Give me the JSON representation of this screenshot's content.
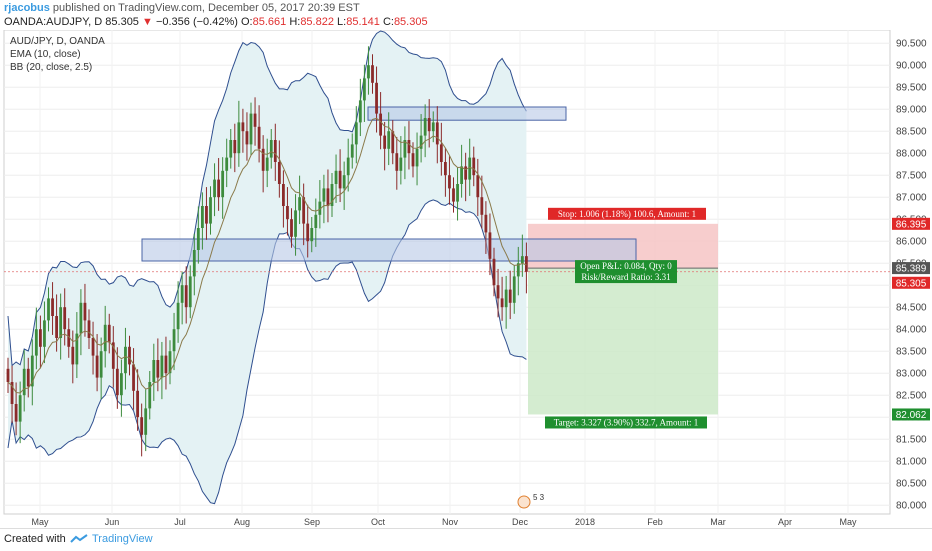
{
  "header": {
    "author": "rjacobus",
    "published_text": "published on TradingView.com, December 05, 2017 20:39 EST",
    "symbol": "OANDA:AUDJPY, D",
    "last": "85.305",
    "change_arrow": "▼",
    "change": "−0.356 (−0.42%)",
    "o_label": "O:",
    "o_val": "85.661",
    "h_label": "H:",
    "h_val": "85.822",
    "l_label": "L:",
    "l_val": "85.141",
    "c_label": "C:",
    "c_val": "85.305"
  },
  "legend": {
    "title": "AUD/JPY, D, OANDA",
    "ema": "EMA (10, close)",
    "bb": "BB (20, close, 2.5)"
  },
  "footer": {
    "created": "Created with",
    "brand": "TradingView"
  },
  "colors": {
    "up": "#3d8b3d",
    "down": "#8b2a2a",
    "band": "#2f4f8f",
    "band_fill": "#e4f2f4",
    "ema": "#8a7a4a",
    "rect_fill": "#b8c8e6",
    "rect_stroke": "#4a64a6",
    "stop_zone": "#f6c4c4",
    "target_zone": "#cde9c8"
  },
  "chart_data": {
    "type": "candlestick",
    "title": "AUD/JPY, D, OANDA",
    "ylim": [
      79.8,
      90.8
    ],
    "y_ticks": [
      "80.000",
      "80.500",
      "81.000",
      "81.500",
      "82.000",
      "82.500",
      "83.000",
      "83.500",
      "84.000",
      "84.500",
      "85.000",
      "85.500",
      "86.000",
      "86.500",
      "87.000",
      "87.500",
      "88.000",
      "88.500",
      "89.000",
      "89.500",
      "90.000",
      "90.500"
    ],
    "x_ticks": [
      "May",
      "Jun",
      "Jul",
      "Aug",
      "Sep",
      "Oct",
      "Nov",
      "Dec",
      "2018",
      "Feb",
      "Mar",
      "Apr",
      "May"
    ],
    "closes": [
      82.8,
      82.3,
      81.9,
      82.5,
      83.1,
      82.7,
      83.4,
      84.0,
      83.6,
      84.2,
      84.7,
      84.3,
      83.8,
      84.5,
      84.0,
      83.6,
      83.2,
      83.9,
      84.6,
      84.2,
      83.8,
      83.4,
      82.9,
      83.5,
      84.1,
      83.7,
      83.1,
      82.5,
      83.0,
      83.6,
      83.2,
      82.6,
      82.0,
      81.6,
      82.2,
      82.8,
      83.3,
      82.9,
      83.4,
      83.0,
      83.5,
      84.0,
      84.6,
      85.0,
      84.5,
      85.2,
      85.8,
      86.3,
      86.8,
      86.4,
      87.0,
      87.4,
      87.0,
      87.6,
      87.9,
      88.3,
      88.0,
      88.7,
      88.5,
      88.2,
      88.9,
      88.6,
      88.1,
      87.6,
      87.9,
      88.3,
      87.8,
      87.3,
      86.8,
      86.5,
      86.1,
      86.7,
      87.0,
      86.4,
      86.0,
      86.3,
      86.6,
      86.9,
      87.2,
      86.8,
      87.3,
      87.6,
      87.2,
      87.5,
      87.9,
      88.2,
      88.7,
      89.2,
      89.7,
      90.0,
      89.6,
      88.9,
      88.4,
      88.1,
      88.5,
      88.0,
      87.6,
      87.9,
      88.3,
      88.0,
      87.7,
      88.1,
      88.4,
      88.8,
      88.5,
      88.7,
      88.2,
      87.8,
      87.5,
      87.2,
      86.9,
      87.3,
      87.7,
      87.4,
      87.9,
      87.5,
      87.0,
      86.6,
      86.2,
      85.6,
      85.0,
      84.7,
      84.5,
      84.9,
      84.6,
      85.2,
      85.5,
      85.66,
      85.305
    ],
    "open_pnl_label": "Open P&L: 0.084, Qty: 0",
    "rr_label": "Risk/Reward Ratio: 3.31",
    "stop_label": "Stop: 1.006 (1.18%) 100.6, Amount: 1",
    "target_label": "Target: 3.327 (3.90%) 332.7, Amount: 1",
    "stop_price": "86.395",
    "target_price": "82.062",
    "last_price": "85.305",
    "entry_price": "85.389",
    "stop_value": 86.395,
    "target_value": 82.062,
    "entry_value": 85.389,
    "last_value": 85.305,
    "events_badge": "5 3"
  }
}
